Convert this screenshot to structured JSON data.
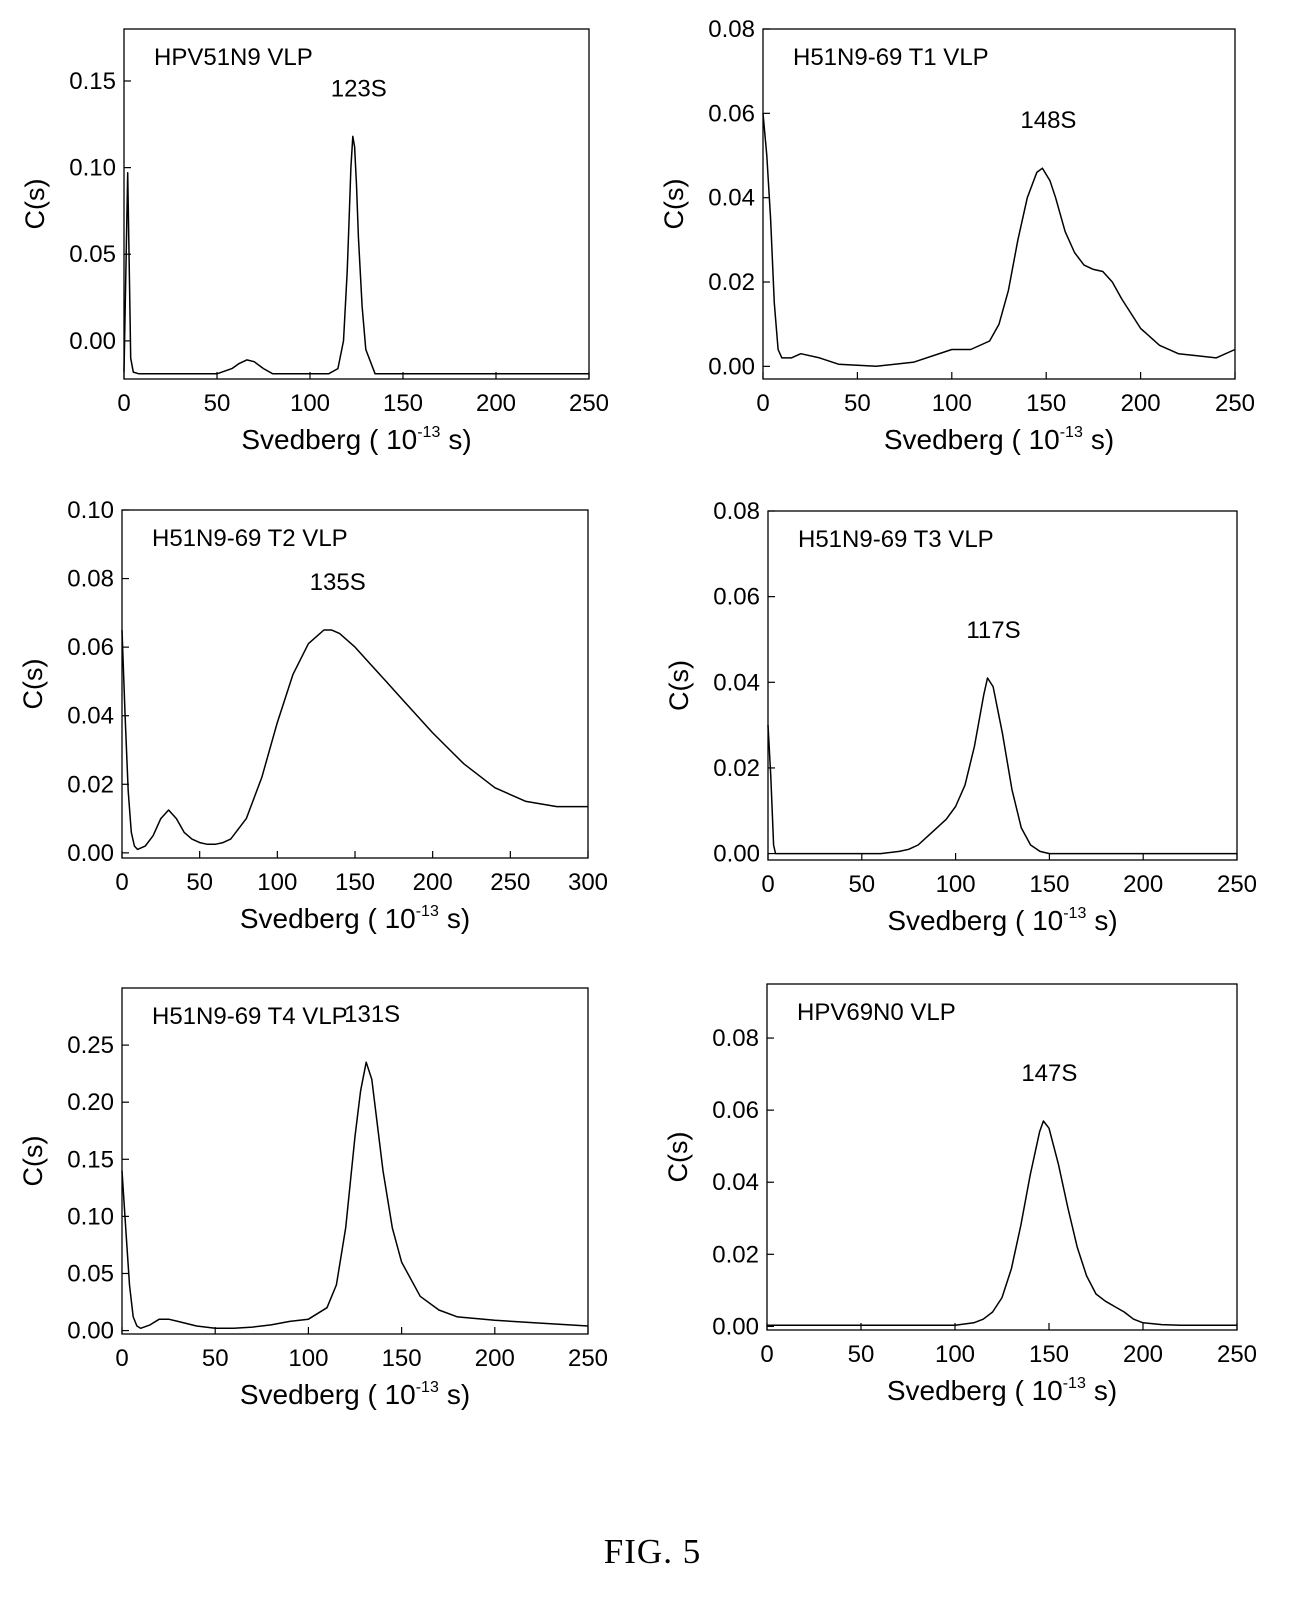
{
  "figure": {
    "caption": "FIG. 5"
  },
  "chart_data": [
    {
      "type": "line",
      "title": "HPV51N9 VLP",
      "peak_label": "123S",
      "xlabel": "Svedberg ( 10",
      "xlabel_exp": "-13",
      "xlabel_unit": "s)",
      "ylabel": "C(s)",
      "xlim": [
        0,
        250
      ],
      "ylim": [
        -0.022,
        0.18
      ],
      "xticks": [
        0,
        50,
        100,
        150,
        200,
        250
      ],
      "yticks": [
        0.0,
        0.05,
        0.1,
        0.15
      ],
      "ytick_labels": [
        "0.00",
        "0.05",
        "0.10",
        "0.15"
      ],
      "peak": {
        "x": 123,
        "y": 0.118
      },
      "series": [
        {
          "x": [
            0,
            2,
            3,
            3.6,
            5,
            8,
            10,
            30,
            50,
            58,
            62,
            66,
            70,
            75,
            80,
            90,
            100,
            110,
            115,
            118,
            120,
            121,
            122,
            123,
            124,
            125,
            126,
            128,
            130,
            135,
            140,
            160,
            200,
            250
          ],
          "y": [
            -0.018,
            0.097,
            0.03,
            -0.01,
            -0.018,
            -0.019,
            -0.019,
            -0.019,
            -0.019,
            -0.016,
            -0.013,
            -0.011,
            -0.012,
            -0.016,
            -0.019,
            -0.019,
            -0.019,
            -0.019,
            -0.016,
            0.0,
            0.04,
            0.07,
            0.1,
            0.118,
            0.112,
            0.09,
            0.06,
            0.02,
            -0.005,
            -0.019,
            -0.019,
            -0.019,
            -0.019,
            -0.019
          ]
        }
      ]
    },
    {
      "type": "line",
      "title": "H51N9-69 T1 VLP",
      "peak_label": "148S",
      "xlabel": "Svedberg ( 10",
      "xlabel_exp": "-13",
      "xlabel_unit": "s)",
      "ylabel": "C(s)",
      "xlim": [
        0,
        250
      ],
      "ylim": [
        -0.003,
        0.08
      ],
      "xticks": [
        0,
        50,
        100,
        150,
        200,
        250
      ],
      "yticks": [
        0.0,
        0.02,
        0.04,
        0.06,
        0.08
      ],
      "ytick_labels": [
        "0.00",
        "0.02",
        "0.04",
        "0.06",
        "0.08"
      ],
      "peak": {
        "x": 148,
        "y": 0.047
      },
      "series": [
        {
          "x": [
            0,
            2,
            4,
            6,
            8,
            10,
            15,
            20,
            30,
            40,
            60,
            80,
            100,
            110,
            120,
            125,
            130,
            135,
            140,
            145,
            148,
            152,
            155,
            160,
            165,
            170,
            175,
            180,
            185,
            190,
            200,
            210,
            220,
            230,
            240,
            250
          ],
          "y": [
            0.06,
            0.05,
            0.035,
            0.015,
            0.004,
            0.002,
            0.002,
            0.003,
            0.002,
            0.0005,
            0.0,
            0.001,
            0.004,
            0.004,
            0.006,
            0.01,
            0.018,
            0.03,
            0.04,
            0.046,
            0.047,
            0.044,
            0.04,
            0.032,
            0.027,
            0.024,
            0.023,
            0.0225,
            0.02,
            0.016,
            0.009,
            0.005,
            0.003,
            0.0025,
            0.002,
            0.004
          ]
        }
      ]
    },
    {
      "type": "line",
      "title": "H51N9-69 T2 VLP",
      "peak_label": "135S",
      "xlabel": "Svedberg ( 10",
      "xlabel_exp": "-13",
      "xlabel_unit": "s)",
      "ylabel": "C(s)",
      "xlim": [
        0,
        300
      ],
      "ylim": [
        -0.0015,
        0.1
      ],
      "xticks": [
        0,
        50,
        100,
        150,
        200,
        250,
        300
      ],
      "yticks": [
        0.0,
        0.02,
        0.04,
        0.06,
        0.08,
        0.1
      ],
      "ytick_labels": [
        "0.00",
        "0.02",
        "0.04",
        "0.06",
        "0.08",
        "0.10"
      ],
      "peak": {
        "x": 135,
        "y": 0.065
      },
      "series": [
        {
          "x": [
            0,
            2,
            4,
            6,
            8,
            10,
            15,
            20,
            25,
            30,
            35,
            40,
            45,
            50,
            55,
            60,
            65,
            70,
            80,
            90,
            100,
            110,
            120,
            130,
            135,
            140,
            150,
            160,
            170,
            180,
            200,
            220,
            240,
            260,
            280,
            300
          ],
          "y": [
            0.065,
            0.04,
            0.018,
            0.006,
            0.002,
            0.001,
            0.002,
            0.005,
            0.01,
            0.0125,
            0.01,
            0.006,
            0.004,
            0.003,
            0.0025,
            0.0025,
            0.003,
            0.004,
            0.01,
            0.022,
            0.038,
            0.052,
            0.061,
            0.065,
            0.065,
            0.064,
            0.06,
            0.055,
            0.05,
            0.045,
            0.035,
            0.026,
            0.019,
            0.015,
            0.0135,
            0.0135
          ]
        }
      ]
    },
    {
      "type": "line",
      "title": "H51N9-69 T3 VLP",
      "peak_label": "117S",
      "xlabel": "Svedberg ( 10",
      "xlabel_exp": "-13",
      "xlabel_unit": "s)",
      "ylabel": "C(s)",
      "xlim": [
        0,
        250
      ],
      "ylim": [
        -0.0015,
        0.08
      ],
      "xticks": [
        0,
        50,
        100,
        150,
        200,
        250
      ],
      "yticks": [
        0.0,
        0.02,
        0.04,
        0.06,
        0.08
      ],
      "ytick_labels": [
        "0.00",
        "0.02",
        "0.04",
        "0.06",
        "0.08"
      ],
      "peak": {
        "x": 117,
        "y": 0.041
      },
      "series": [
        {
          "x": [
            0,
            1.5,
            3,
            4,
            6,
            10,
            20,
            40,
            60,
            70,
            75,
            80,
            85,
            90,
            95,
            100,
            105,
            110,
            115,
            117,
            120,
            125,
            130,
            135,
            140,
            145,
            150,
            170,
            200,
            250
          ],
          "y": [
            0.03,
            0.018,
            0.002,
            0.0,
            0.0,
            0.0,
            0.0,
            0.0,
            0.0,
            0.0005,
            0.001,
            0.002,
            0.004,
            0.006,
            0.008,
            0.011,
            0.016,
            0.025,
            0.037,
            0.041,
            0.039,
            0.028,
            0.015,
            0.006,
            0.002,
            0.0005,
            0.0,
            0.0,
            0.0,
            0.0
          ]
        }
      ]
    },
    {
      "type": "line",
      "title": "H51N9-69 T4 VLP",
      "peak_label": "131S",
      "xlabel": "Svedberg ( 10",
      "xlabel_exp": "-13",
      "xlabel_unit": "s)",
      "ylabel": "C(s)",
      "xlim": [
        0,
        250
      ],
      "ylim": [
        -0.003,
        0.3
      ],
      "xticks": [
        0,
        50,
        100,
        150,
        200,
        250
      ],
      "yticks": [
        0.0,
        0.05,
        0.1,
        0.15,
        0.2,
        0.25
      ],
      "ytick_labels": [
        "0.00",
        "0.05",
        "0.10",
        "0.15",
        "0.20",
        "0.25"
      ],
      "peak": {
        "x": 131,
        "y": 0.235
      },
      "series": [
        {
          "x": [
            0,
            2,
            4,
            6,
            8,
            10,
            15,
            20,
            25,
            30,
            40,
            50,
            60,
            70,
            80,
            90,
            100,
            110,
            115,
            120,
            125,
            128,
            131,
            134,
            137,
            140,
            145,
            150,
            160,
            170,
            180,
            200,
            220,
            250
          ],
          "y": [
            0.14,
            0.09,
            0.04,
            0.012,
            0.004,
            0.002,
            0.005,
            0.01,
            0.01,
            0.008,
            0.004,
            0.002,
            0.002,
            0.003,
            0.005,
            0.008,
            0.01,
            0.02,
            0.04,
            0.09,
            0.17,
            0.21,
            0.235,
            0.22,
            0.18,
            0.14,
            0.09,
            0.06,
            0.03,
            0.018,
            0.012,
            0.009,
            0.007,
            0.004
          ]
        }
      ]
    },
    {
      "type": "line",
      "title": "HPV69N0 VLP",
      "peak_label": "147S",
      "xlabel": "Svedberg ( 10",
      "xlabel_exp": "-13",
      "xlabel_unit": "s)",
      "ylabel": "C(s)",
      "xlim": [
        0,
        250
      ],
      "ylim": [
        -0.001,
        0.095
      ],
      "xticks": [
        0,
        50,
        100,
        150,
        200,
        250
      ],
      "yticks": [
        0.0,
        0.02,
        0.04,
        0.06,
        0.08
      ],
      "ytick_labels": [
        "0.00",
        "0.02",
        "0.04",
        "0.06",
        "0.08"
      ],
      "peak": {
        "x": 147,
        "y": 0.057
      },
      "series": [
        {
          "x": [
            0,
            50,
            100,
            110,
            115,
            120,
            125,
            130,
            135,
            140,
            145,
            147,
            150,
            155,
            160,
            165,
            170,
            175,
            180,
            185,
            190,
            195,
            200,
            210,
            220,
            250
          ],
          "y": [
            0.0003,
            0.0003,
            0.0003,
            0.001,
            0.002,
            0.004,
            0.008,
            0.016,
            0.028,
            0.042,
            0.054,
            0.057,
            0.055,
            0.045,
            0.033,
            0.022,
            0.014,
            0.009,
            0.007,
            0.0055,
            0.004,
            0.002,
            0.001,
            0.0005,
            0.0003,
            0.0003
          ]
        }
      ]
    }
  ]
}
